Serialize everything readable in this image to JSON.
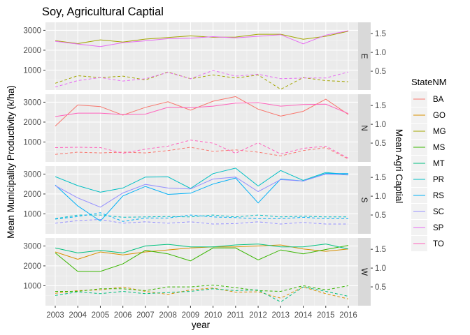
{
  "chart_data": {
    "type": "line",
    "title": "Soy, Agricultural Captial",
    "xlabel": "year",
    "ylabel": "Mean Municipality Productivity (k/ha)",
    "ylabel_right": "Mean Agri Captial",
    "x": [
      2003,
      2004,
      2005,
      2006,
      2007,
      2008,
      2009,
      2010,
      2011,
      2012,
      2013,
      2014,
      2015,
      2016
    ],
    "ylim": [
      0,
      3400
    ],
    "ylim_right": [
      0,
      1.8
    ],
    "yticks_left": [
      1000,
      2000,
      3000
    ],
    "yticks_right": [
      0.5,
      1.0,
      1.5
    ],
    "legend": {
      "title": "StateNM",
      "position": "right",
      "entries": [
        "BA",
        "GO",
        "MG",
        "MS",
        "MT",
        "PR",
        "RS",
        "SC",
        "SP",
        "TO"
      ]
    },
    "colors": {
      "BA": "#F8766D",
      "GO": "#D89000",
      "MG": "#A3A500",
      "MS": "#39B600",
      "MT": "#00BF7D",
      "PR": "#00BFC4",
      "RS": "#00B0F6",
      "SC": "#9590FF",
      "SP": "#E76BF3",
      "TO": "#FF62BC"
    },
    "grid": true,
    "line_styles": {
      "productivity": "solid",
      "agri_capital": "dashed"
    },
    "facets": [
      {
        "strip": "E",
        "productivity": [
          {
            "name": "MG",
            "values": [
              2480,
              2330,
              2520,
              2410,
              2560,
              2640,
              2720,
              2650,
              2660,
              2800,
              2800,
              2550,
              2700,
              2950
            ]
          },
          {
            "name": "SP",
            "values": [
              2450,
              2310,
              2180,
              2380,
              2470,
              2580,
              2600,
              2680,
              2620,
              2700,
              2780,
              2320,
              2760,
              2980
            ]
          }
        ],
        "agri_capital": [
          {
            "name": "MG",
            "values": [
              0.18,
              0.38,
              0.33,
              0.37,
              0.27,
              0.48,
              0.3,
              0.4,
              0.32,
              0.4,
              0.02,
              0.33,
              0.25,
              0.22
            ]
          },
          {
            "name": "SP",
            "values": [
              0.08,
              0.25,
              0.33,
              0.24,
              0.3,
              0.47,
              0.3,
              0.52,
              0.37,
              0.42,
              0.3,
              0.32,
              0.32,
              0.48
            ]
          }
        ]
      },
      {
        "strip": "N",
        "productivity": [
          {
            "name": "BA",
            "values": [
              1800,
              2860,
              2780,
              2350,
              2740,
              3020,
              2600,
              3050,
              3280,
              2650,
              2300,
              2540,
              3150,
              2380
            ]
          },
          {
            "name": "TO",
            "values": [
              2280,
              2450,
              2450,
              2380,
              2400,
              2740,
              2720,
              2800,
              2950,
              2980,
              2800,
              2880,
              2900,
              2430
            ]
          }
        ],
        "agri_capital": [
          {
            "name": "BA",
            "values": [
              0.2,
              0.26,
              0.24,
              0.26,
              0.24,
              0.3,
              0.39,
              0.28,
              0.32,
              0.26,
              0.16,
              0.3,
              0.38,
              0.08
            ]
          },
          {
            "name": "TO",
            "values": [
              0.38,
              0.39,
              0.38,
              0.23,
              0.34,
              0.42,
              0.58,
              0.5,
              0.23,
              0.51,
              0.21,
              0.36,
              0.42,
              0.1
            ]
          }
        ]
      },
      {
        "strip": "S",
        "productivity": [
          {
            "name": "PR",
            "values": [
              2870,
              2420,
              2090,
              2300,
              2850,
              2860,
              2280,
              3020,
              3300,
              2400,
              3180,
              2680,
              3080,
              2970
            ]
          },
          {
            "name": "RS",
            "values": [
              2450,
              1400,
              640,
              1900,
              2380,
              1980,
              2040,
              2500,
              2800,
              1550,
              2750,
              2650,
              3030,
              3020
            ]
          },
          {
            "name": "SC",
            "values": [
              2420,
              1800,
              1340,
              2050,
              2480,
              2300,
              2250,
              2750,
              2850,
              2120,
              2720,
              2650,
              3000,
              2950
            ]
          }
        ],
        "agri_capital": [
          {
            "name": "PR",
            "values": [
              0.4,
              0.5,
              0.5,
              0.44,
              0.45,
              0.46,
              0.45,
              0.5,
              0.45,
              0.5,
              0.45,
              0.47,
              0.45,
              0.45
            ]
          },
          {
            "name": "RS",
            "values": [
              0.39,
              0.46,
              0.56,
              0.33,
              0.42,
              0.42,
              0.5,
              0.45,
              0.43,
              0.4,
              0.4,
              0.44,
              0.4,
              0.4
            ]
          },
          {
            "name": "SC",
            "values": [
              0.28,
              0.35,
              0.38,
              0.28,
              0.32,
              0.28,
              0.32,
              0.26,
              0.27,
              0.32,
              0.26,
              0.3,
              0.26,
              0.26
            ]
          }
        ]
      },
      {
        "strip": "W",
        "productivity": [
          {
            "name": "GO",
            "values": [
              2700,
              2330,
              2700,
              2550,
              2700,
              2800,
              2900,
              2950,
              2950,
              3000,
              3050,
              2850,
              2730,
              2850
            ]
          },
          {
            "name": "MS",
            "values": [
              2650,
              1720,
              1720,
              2100,
              2780,
              2600,
              2250,
              2900,
              2900,
              2300,
              2800,
              2600,
              2820,
              3030
            ]
          },
          {
            "name": "MT",
            "values": [
              2900,
              2650,
              2780,
              2650,
              3000,
              3080,
              2950,
              2950,
              3050,
              3100,
              2950,
              2950,
              3100,
              2850
            ]
          }
        ],
        "agri_capital": [
          {
            "name": "GO",
            "values": [
              0.33,
              0.4,
              0.42,
              0.5,
              0.38,
              0.3,
              0.42,
              0.47,
              0.36,
              0.37,
              0.2,
              0.5,
              0.32,
              0.18
            ]
          },
          {
            "name": "MS",
            "values": [
              0.38,
              0.38,
              0.45,
              0.45,
              0.4,
              0.5,
              0.5,
              0.55,
              0.48,
              0.4,
              0.38,
              0.53,
              0.42,
              0.53
            ]
          },
          {
            "name": "MT",
            "values": [
              0.27,
              0.37,
              0.32,
              0.38,
              0.32,
              0.35,
              0.38,
              0.45,
              0.4,
              0.42,
              0.1,
              0.5,
              0.38,
              0.25
            ]
          }
        ]
      }
    ]
  }
}
